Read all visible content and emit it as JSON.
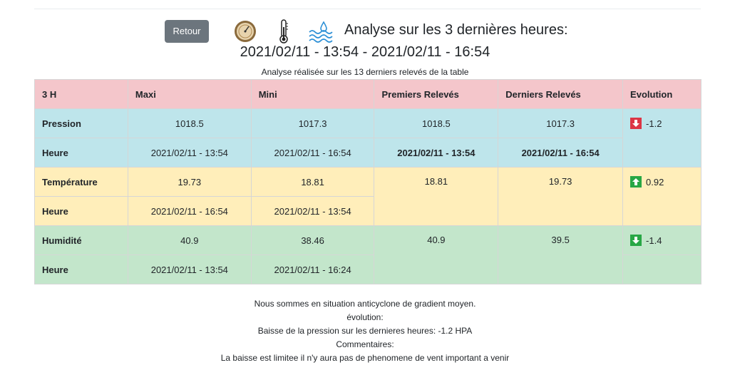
{
  "header": {
    "back_label": "Retour",
    "title": "Analyse sur les 3 dernières heures:",
    "range": "2021/02/11 - 13:54 - 2021/02/11 - 16:54",
    "caption": "Analyse réalisée sur les 13 derniers relevés de la table",
    "icons": [
      "barometer-icon",
      "thermometer-icon",
      "water-drops-icon"
    ]
  },
  "table": {
    "columns": [
      "3 H",
      "Maxi",
      "Mini",
      "Premiers Relevés",
      "Derniers Relevés",
      "Evolution"
    ],
    "pression": {
      "label": "Pression",
      "maxi": "1018.5",
      "mini": "1017.3",
      "premier": "1018.5",
      "dernier": "1017.3",
      "evolution": "-1.2",
      "heure_label": "Heure",
      "heure_maxi": "2021/02/11 - 13:54",
      "heure_mini": "2021/02/11 - 16:54",
      "heure_premier": "2021/02/11 - 13:54",
      "heure_dernier": "2021/02/11 - 16:54"
    },
    "temperature": {
      "label": "Température",
      "maxi": "19.73",
      "mini": "18.81",
      "premier": "18.81",
      "dernier": "19.73",
      "evolution": "0.92",
      "heure_label": "Heure",
      "heure_maxi": "2021/02/11 - 16:54",
      "heure_mini": "2021/02/11 - 13:54"
    },
    "humidite": {
      "label": "Humidité",
      "maxi": "40.9",
      "mini": "38.46",
      "premier": "40.9",
      "dernier": "39.5",
      "evolution": "-1.4",
      "heure_label": "Heure",
      "heure_maxi": "2021/02/11 - 13:54",
      "heure_mini": "2021/02/11 - 16:24"
    }
  },
  "footer": {
    "line1": "Nous sommes en situation anticyclone de gradient moyen.",
    "line2": "évolution:",
    "line3": "Baisse de la pression sur les dernieres heures: -1.2 HPA",
    "line4": "Commentaires:",
    "line5": "La baisse est limitee il n'y aura pas de phenomene de vent important a venir"
  },
  "colors": {
    "header_row": "#f4c6cb",
    "pression_row": "#bee5eb",
    "temperature_row": "#ffeeba",
    "humidite_row": "#c3e6cb",
    "arrow_down_red": "#dc3545",
    "arrow_up_green": "#28a745",
    "button": "#6c757d"
  }
}
